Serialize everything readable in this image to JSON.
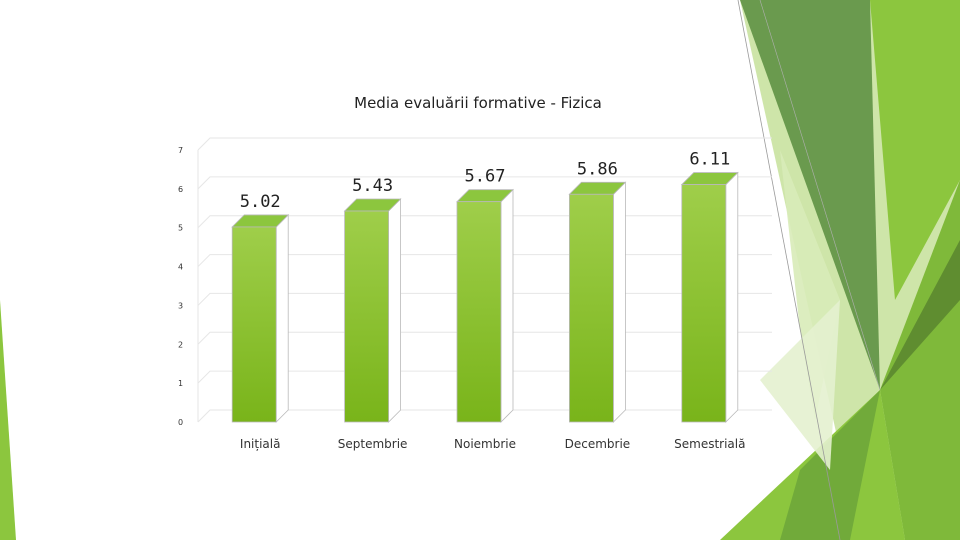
{
  "colors": {
    "bar_front_top": "#9fce4a",
    "bar_front_bottom": "#79b41a",
    "bar_side": "#ffffff",
    "bar_top": "#8cc63e",
    "deco_green_1": "#8cc63e",
    "deco_green_2": "#6a9a4e",
    "deco_green_3": "#5f8d30",
    "deco_green_4": "#a6cf62",
    "deco_green_5": "#d8ebb8",
    "grid": "#e6e6e6"
  },
  "chart_data": {
    "type": "bar",
    "title": "Media evaluării formative - Fizica",
    "categories": [
      "Inițială",
      "Septembrie",
      "Noiembrie",
      "Decembrie",
      "Semestrială"
    ],
    "values": [
      5.02,
      5.43,
      5.67,
      5.86,
      6.11
    ],
    "value_labels": [
      "5.02",
      "5.43",
      "5.67",
      "5.86",
      "6.11"
    ],
    "ylim": [
      0,
      7
    ],
    "yticks": [
      "0",
      "1",
      "2",
      "3",
      "4",
      "5",
      "6",
      "7"
    ],
    "xlabel": "",
    "ylabel": "",
    "grid": true,
    "style": "3d-column"
  }
}
